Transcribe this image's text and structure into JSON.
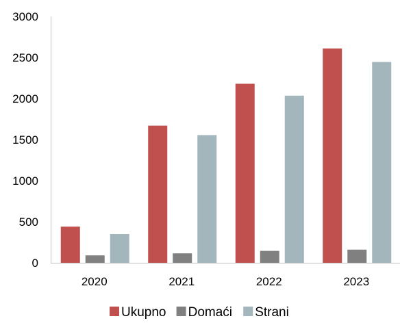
{
  "chart_data": {
    "type": "bar",
    "categories": [
      "2020",
      "2021",
      "2022",
      "2023"
    ],
    "series": [
      {
        "name": "Ukupno",
        "values": [
          440,
          1670,
          2180,
          2610
        ],
        "color": "#c0504d"
      },
      {
        "name": "Domaći",
        "values": [
          90,
          115,
          145,
          160
        ],
        "color": "#808080"
      },
      {
        "name": "Strani",
        "values": [
          350,
          1555,
          2035,
          2445
        ],
        "color": "#a2b6bc"
      }
    ],
    "y_ticks": [
      "0",
      "500",
      "1000",
      "1500",
      "2000",
      "2500",
      "3000"
    ],
    "ylim": [
      0,
      3000
    ],
    "grid": false,
    "legend_position": "bottom",
    "xlabel": "",
    "ylabel": "",
    "title": ""
  }
}
